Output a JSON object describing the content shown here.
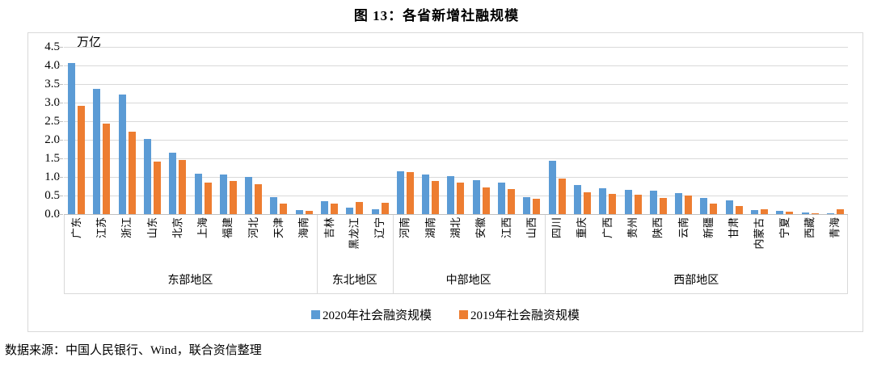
{
  "page": {
    "title": "图 13：各省新增社融规模",
    "source_note": "数据来源：中国人民银行、Wind，联合资信整理"
  },
  "chart_data": {
    "type": "bar",
    "title": "图 13：各省新增社融规模",
    "unit_label": "万亿",
    "ylim": [
      0,
      4.5
    ],
    "ytick_step": 0.5,
    "grid": true,
    "legend_position": "bottom",
    "categories": [
      "广东",
      "江苏",
      "浙江",
      "山东",
      "北京",
      "上海",
      "福建",
      "河北",
      "天津",
      "海南",
      "吉林",
      "黑龙江",
      "辽宁",
      "河南",
      "湖南",
      "湖北",
      "安徽",
      "江西",
      "山西",
      "四川",
      "重庆",
      "广西",
      "贵州",
      "陕西",
      "云南",
      "新疆",
      "甘肃",
      "内蒙古",
      "宁夏",
      "西藏",
      "青海"
    ],
    "region_groups": [
      {
        "label": "东部地区",
        "count": 10
      },
      {
        "label": "东北地区",
        "count": 3
      },
      {
        "label": "中部地区",
        "count": 6
      },
      {
        "label": "西部地区",
        "count": 12
      }
    ],
    "series": [
      {
        "name": "2020年社会融资规模",
        "color": "#5B9BD5",
        "values": [
          4.07,
          3.38,
          3.22,
          2.02,
          1.66,
          1.08,
          1.06,
          1.01,
          0.45,
          0.1,
          0.35,
          0.18,
          0.14,
          1.15,
          1.07,
          1.03,
          0.91,
          0.85,
          0.46,
          1.43,
          0.79,
          0.7,
          0.65,
          0.62,
          0.57,
          0.43,
          0.38,
          0.11,
          0.08,
          0.04,
          0.01
        ]
      },
      {
        "name": "2019年社会融资规模",
        "color": "#ED7D31",
        "values": [
          2.92,
          2.43,
          2.22,
          1.41,
          1.46,
          0.85,
          0.89,
          0.81,
          0.29,
          0.08,
          0.29,
          0.32,
          0.31,
          1.13,
          0.89,
          0.85,
          0.72,
          0.68,
          0.41,
          0.95,
          0.59,
          0.54,
          0.52,
          0.43,
          0.49,
          0.28,
          0.22,
          0.14,
          0.07,
          0.01,
          0.12
        ]
      }
    ]
  }
}
